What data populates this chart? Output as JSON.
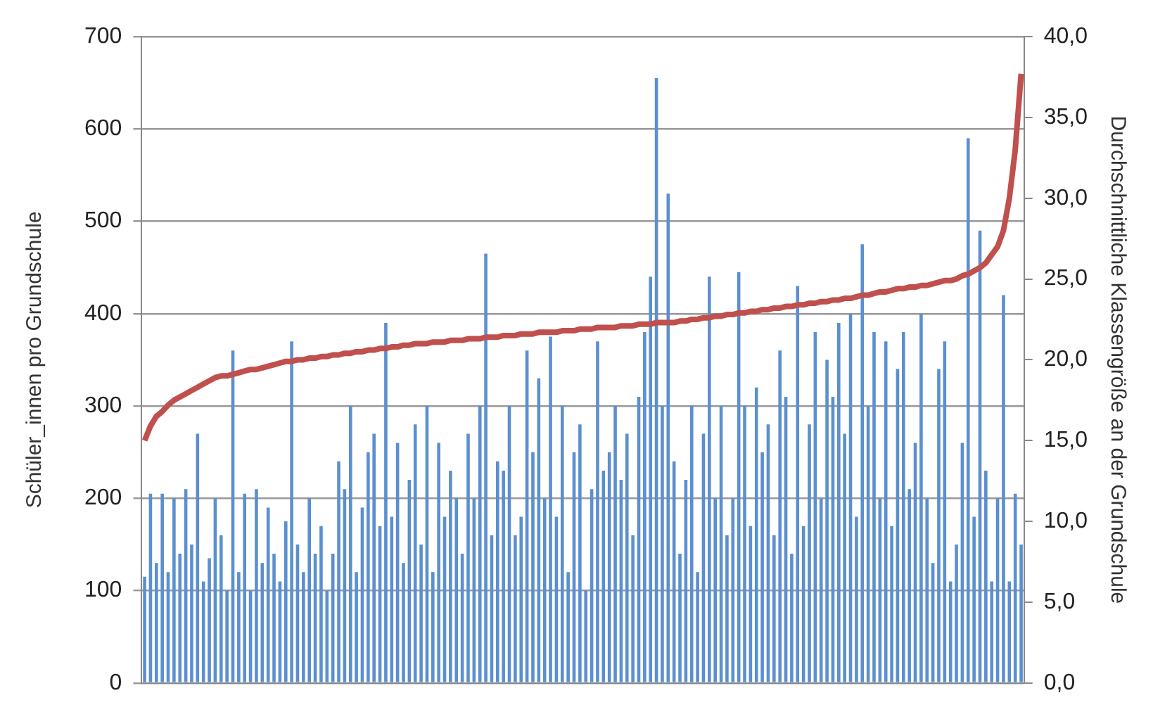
{
  "chart_data": {
    "type": "bar",
    "ylabel": "Schüler_innen pro Grundschule",
    "y2label": "Durchschnittliche Klassengröße an der Grundschule",
    "categories": [
      null,
      null,
      null,
      null,
      null,
      null,
      null,
      null,
      null,
      null,
      null,
      null,
      null,
      null,
      null,
      null,
      null,
      null,
      null,
      null,
      null,
      null,
      null,
      null,
      null,
      null,
      null,
      null,
      null,
      null,
      null,
      null,
      null,
      null,
      null,
      null,
      null,
      null,
      null,
      null,
      null,
      null,
      null,
      null,
      null,
      null,
      null,
      null,
      null,
      null,
      null,
      null,
      null,
      null,
      null,
      null,
      null,
      null,
      null,
      null,
      null,
      null,
      null,
      null,
      null,
      null,
      null,
      null,
      null,
      null,
      null,
      null,
      null,
      null,
      null,
      null,
      null,
      null,
      null,
      null,
      null,
      null,
      null,
      null,
      null,
      null,
      null,
      null,
      null,
      null,
      null,
      null,
      null,
      null,
      null,
      null,
      null,
      null,
      null,
      null,
      null,
      null,
      null,
      null,
      null,
      null,
      null,
      null,
      null,
      null,
      null,
      null,
      null,
      null,
      null,
      null,
      null,
      null,
      null,
      null,
      null,
      null,
      null,
      null,
      null,
      null,
      null,
      null,
      null,
      null,
      null,
      null,
      null,
      null,
      null,
      null,
      null,
      null,
      null,
      null,
      null,
      null,
      null,
      null,
      null,
      null,
      null,
      null,
      null,
      null
    ],
    "series": [
      {
        "color": "#5b8fd0",
        "values": [
          115,
          205,
          130,
          205,
          120,
          200,
          140,
          210,
          150,
          270,
          110,
          135,
          200,
          160,
          100,
          360,
          120,
          205,
          100,
          210,
          130,
          190,
          140,
          110,
          175,
          370,
          150,
          120,
          200,
          140,
          170,
          100,
          140,
          240,
          210,
          300,
          120,
          190,
          250,
          270,
          170,
          390,
          180,
          260,
          130,
          220,
          280,
          150,
          300,
          120,
          260,
          180,
          230,
          200,
          140,
          270,
          200,
          300,
          465,
          160,
          240,
          230,
          300,
          160,
          180,
          360,
          250,
          330,
          200,
          375,
          180,
          300,
          120,
          250,
          280,
          100,
          210,
          370,
          230,
          250,
          300,
          220,
          270,
          160,
          310,
          380,
          440,
          655,
          300,
          530,
          240,
          140,
          220,
          300,
          120,
          270,
          440,
          200,
          300,
          160,
          200,
          445,
          300,
          170,
          320,
          250,
          280,
          160,
          360,
          310,
          140,
          430,
          170,
          280,
          380,
          200,
          350,
          310,
          390,
          270,
          400,
          180,
          475,
          300,
          380,
          200,
          370,
          170,
          340,
          380,
          210,
          260,
          400,
          200,
          130,
          340,
          370,
          110,
          150,
          260,
          590,
          180,
          490,
          230,
          110,
          200,
          420,
          110,
          205,
          150
        ]
      },
      {
        "type": "line",
        "axis": "y2",
        "color": "#c0504d",
        "values": [
          15.0,
          15.9,
          16.5,
          16.8,
          17.2,
          17.5,
          17.7,
          17.9,
          18.1,
          18.3,
          18.5,
          18.7,
          18.9,
          19.0,
          19.0,
          19.1,
          19.2,
          19.3,
          19.4,
          19.4,
          19.5,
          19.6,
          19.7,
          19.8,
          19.9,
          19.9,
          20.0,
          20.0,
          20.1,
          20.1,
          20.2,
          20.2,
          20.3,
          20.3,
          20.4,
          20.4,
          20.5,
          20.5,
          20.6,
          20.6,
          20.7,
          20.7,
          20.8,
          20.8,
          20.9,
          20.9,
          21.0,
          21.0,
          21.0,
          21.1,
          21.1,
          21.1,
          21.2,
          21.2,
          21.2,
          21.3,
          21.3,
          21.3,
          21.4,
          21.4,
          21.4,
          21.5,
          21.5,
          21.5,
          21.6,
          21.6,
          21.6,
          21.7,
          21.7,
          21.7,
          21.7,
          21.8,
          21.8,
          21.8,
          21.9,
          21.9,
          21.9,
          22.0,
          22.0,
          22.0,
          22.0,
          22.1,
          22.1,
          22.1,
          22.2,
          22.2,
          22.2,
          22.3,
          22.3,
          22.3,
          22.3,
          22.4,
          22.4,
          22.5,
          22.5,
          22.6,
          22.6,
          22.7,
          22.7,
          22.8,
          22.8,
          22.9,
          22.9,
          23.0,
          23.0,
          23.1,
          23.1,
          23.2,
          23.2,
          23.3,
          23.3,
          23.4,
          23.4,
          23.5,
          23.5,
          23.6,
          23.6,
          23.7,
          23.7,
          23.8,
          23.8,
          23.9,
          24.0,
          24.0,
          24.1,
          24.2,
          24.2,
          24.3,
          24.4,
          24.4,
          24.5,
          24.5,
          24.6,
          24.6,
          24.7,
          24.8,
          24.9,
          24.9,
          25.0,
          25.2,
          25.3,
          25.5,
          25.7,
          26.0,
          26.5,
          27.0,
          28.0,
          30.0,
          33.0,
          37.7
        ]
      }
    ],
    "ylim": [
      0,
      700
    ],
    "yticks": [
      0,
      100,
      200,
      300,
      400,
      500,
      600,
      700
    ],
    "y2lim": [
      0,
      40
    ],
    "y2ticks": [
      {
        "value": 0,
        "label": "0,0"
      },
      {
        "value": 5,
        "label": "5,0"
      },
      {
        "value": 10,
        "label": "10,0"
      },
      {
        "value": 15,
        "label": "15,0"
      },
      {
        "value": 20,
        "label": "20,0"
      },
      {
        "value": 25,
        "label": "25,0"
      },
      {
        "value": 30,
        "label": "30,0"
      },
      {
        "value": 35,
        "label": "35,0"
      },
      {
        "value": 40,
        "label": "40,0"
      }
    ],
    "grid": "y",
    "tick_labels": "y",
    "legend": false,
    "marker": "none"
  }
}
